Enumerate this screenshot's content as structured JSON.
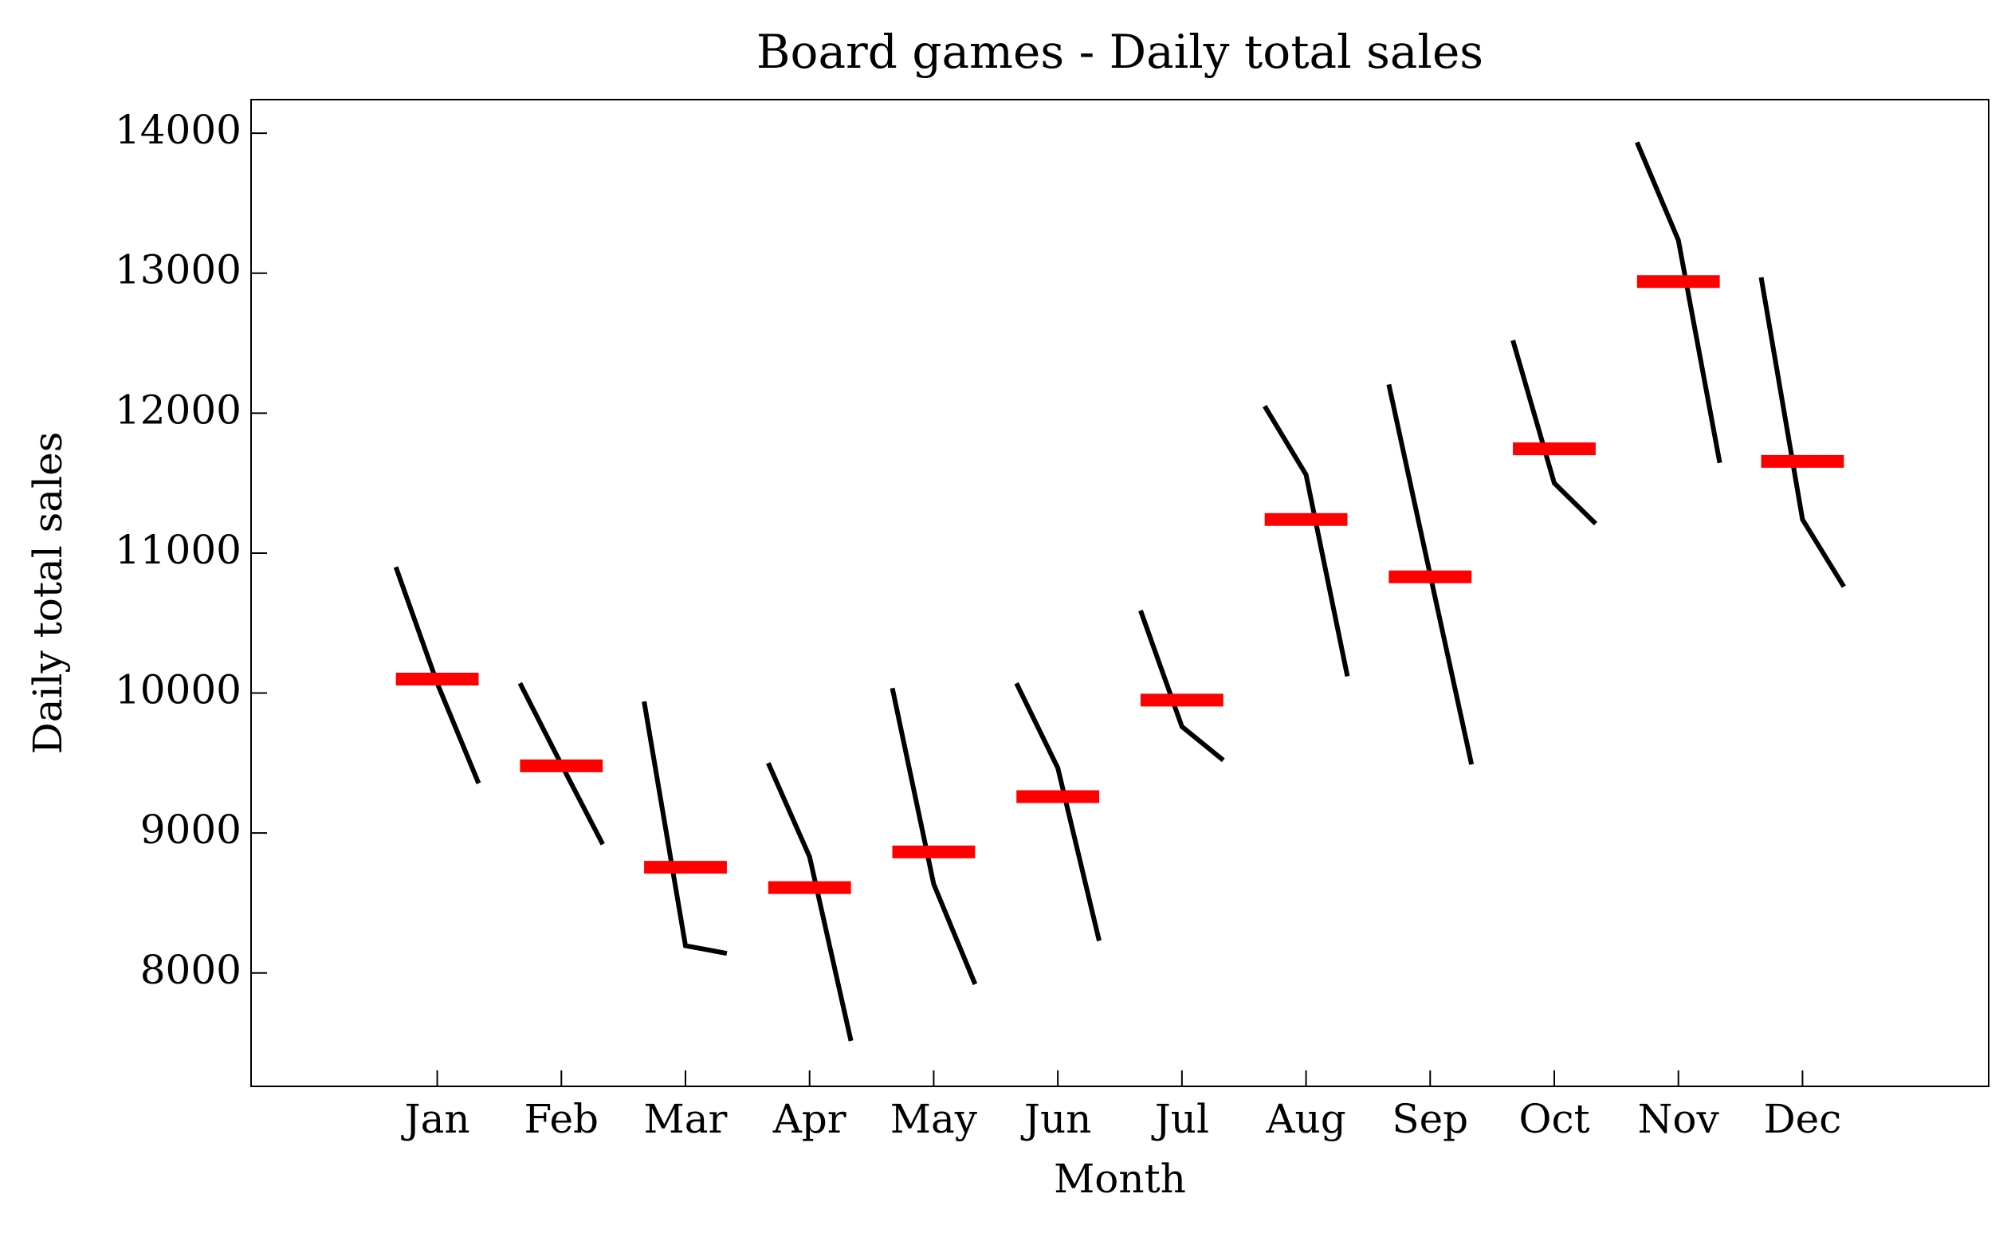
{
  "chart_data": {
    "type": "month_plot",
    "title": "Board games - Daily total sales",
    "xlabel": "Month",
    "ylabel": "Daily total sales",
    "categories": [
      "Jan",
      "Feb",
      "Mar",
      "Apr",
      "May",
      "Jun",
      "Jul",
      "Aug",
      "Sep",
      "Oct",
      "Nov",
      "Dec"
    ],
    "values": [
      [
        10900,
        10070,
        9355
      ],
      [
        10070,
        9490,
        8920
      ],
      [
        9940,
        8195,
        8140
      ],
      [
        9500,
        8830,
        7515
      ],
      [
        10035,
        8635,
        7920
      ],
      [
        10070,
        9465,
        8230
      ],
      [
        10590,
        9760,
        9520
      ],
      [
        12050,
        11560,
        10120
      ],
      [
        12205,
        10845,
        9490
      ],
      [
        12520,
        11500,
        11210
      ],
      [
        13935,
        13235,
        11645
      ],
      [
        12970,
        11240,
        10760
      ]
    ],
    "means": [
      10100,
      9480,
      8755,
      8610,
      8865,
      9260,
      9950,
      11240,
      10830,
      11745,
      12940,
      11655
    ],
    "line_color": "#000000",
    "mean_color": "#ff0000",
    "ylim": [
      7190,
      14240
    ],
    "yticks": [
      8000,
      9000,
      10000,
      11000,
      12000,
      13000,
      14000
    ]
  }
}
